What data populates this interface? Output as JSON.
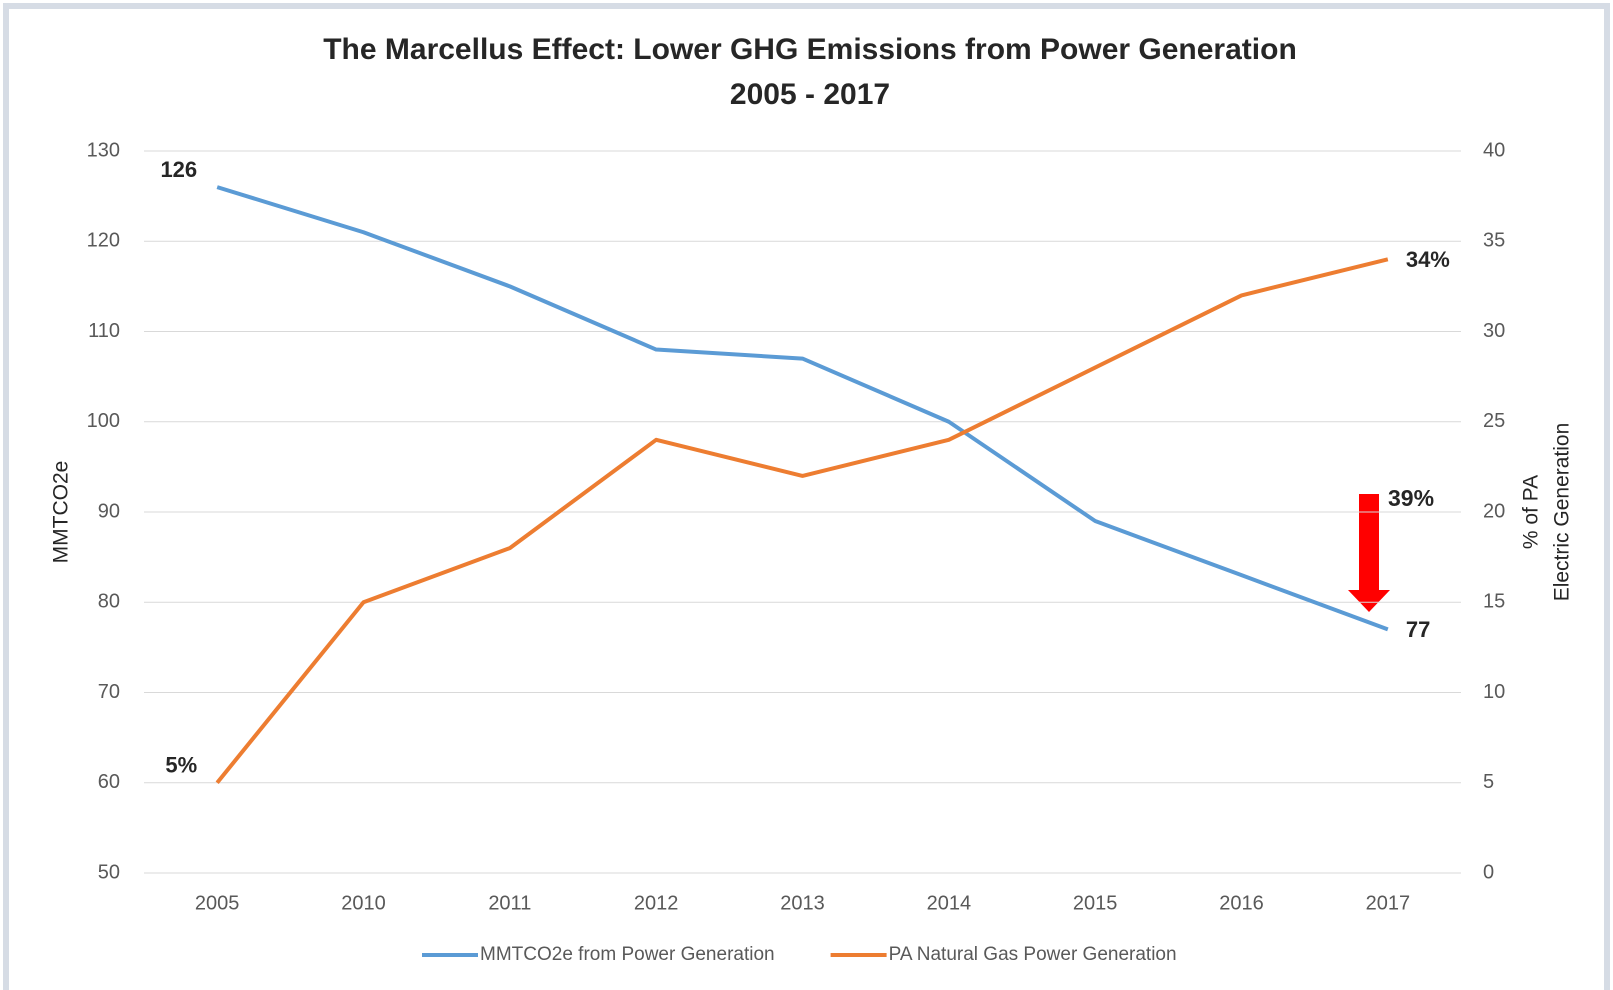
{
  "chart_data": {
    "type": "line",
    "title": [
      "The Marcellus Effect: Lower GHG Emissions from Power Generation",
      "2005 - 2017"
    ],
    "ylabel": "MMTCO2e",
    "y2label": [
      "% of PA",
      "Electric Generation"
    ],
    "categories": [
      "2005",
      "2010",
      "2011",
      "2012",
      "2013",
      "2014",
      "2015",
      "2016",
      "2017"
    ],
    "series": [
      {
        "name": "MMTCO2e from Power Generation",
        "color": "#5b9bd5",
        "values": [
          126,
          121,
          115,
          108,
          107,
          100,
          89,
          83,
          77
        ],
        "value_labels": [
          "126",
          null,
          null,
          null,
          null,
          null,
          null,
          null,
          "77"
        ]
      },
      {
        "name": "PA Natural Gas Power Generation",
        "color": "#ed7d31",
        "axis": "y2",
        "values": [
          5,
          15,
          18,
          24,
          22,
          24,
          28,
          32,
          34
        ],
        "value_labels": [
          "5%",
          null,
          null,
          null,
          null,
          null,
          null,
          null,
          "34%"
        ]
      }
    ],
    "annotation": "39%",
    "ylim": [
      50,
      130
    ],
    "yticks": [
      50,
      60,
      70,
      80,
      90,
      100,
      110,
      120,
      130
    ],
    "y2lim": [
      0,
      40
    ],
    "y2ticks": [
      0,
      5,
      10,
      15,
      20,
      25,
      30,
      35,
      40
    ],
    "grid": true,
    "legend": "bottom"
  }
}
